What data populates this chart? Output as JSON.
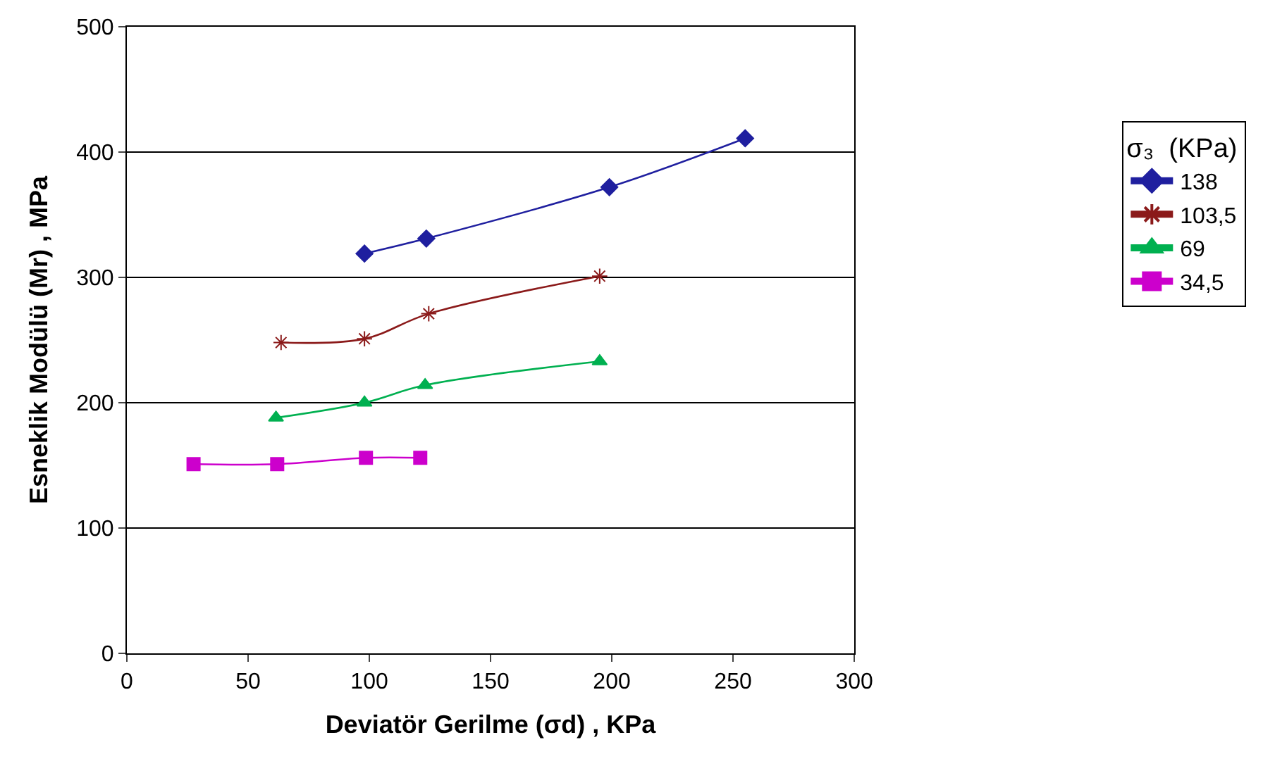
{
  "chart_data": {
    "type": "line",
    "xlabel": "Deviatör Gerilme (σd) , KPa",
    "ylabel": "Esneklik Modülü (Mr) , MPa",
    "legend_title": "σ₃  (KPa)",
    "xlim": [
      0,
      300
    ],
    "xticks": [
      0,
      50,
      100,
      150,
      200,
      250,
      300
    ],
    "ylim": [
      0,
      500
    ],
    "yticks": [
      0,
      100,
      200,
      300,
      400,
      500
    ],
    "grid": "y",
    "legend": "right",
    "series": [
      {
        "name": "138",
        "color": "#1f1f9f",
        "marker": "diamond",
        "x": [
          98,
          123.5,
          199,
          255
        ],
        "values": [
          319,
          331,
          372,
          411
        ]
      },
      {
        "name": "103,5",
        "color": "#8b1a1a",
        "marker": "cross",
        "x": [
          63.6,
          98,
          124.5,
          195
        ],
        "values": [
          248,
          251,
          271,
          301
        ]
      },
      {
        "name": "69",
        "color": "#00b050",
        "marker": "triangle",
        "x": [
          61.5,
          98,
          123,
          195
        ],
        "values": [
          188,
          200,
          214,
          233
        ]
      },
      {
        "name": "34,5",
        "color": "#cc00cc",
        "marker": "square",
        "x": [
          27.5,
          62,
          98.6,
          121
        ],
        "values": [
          151,
          151,
          156,
          156
        ]
      }
    ]
  }
}
